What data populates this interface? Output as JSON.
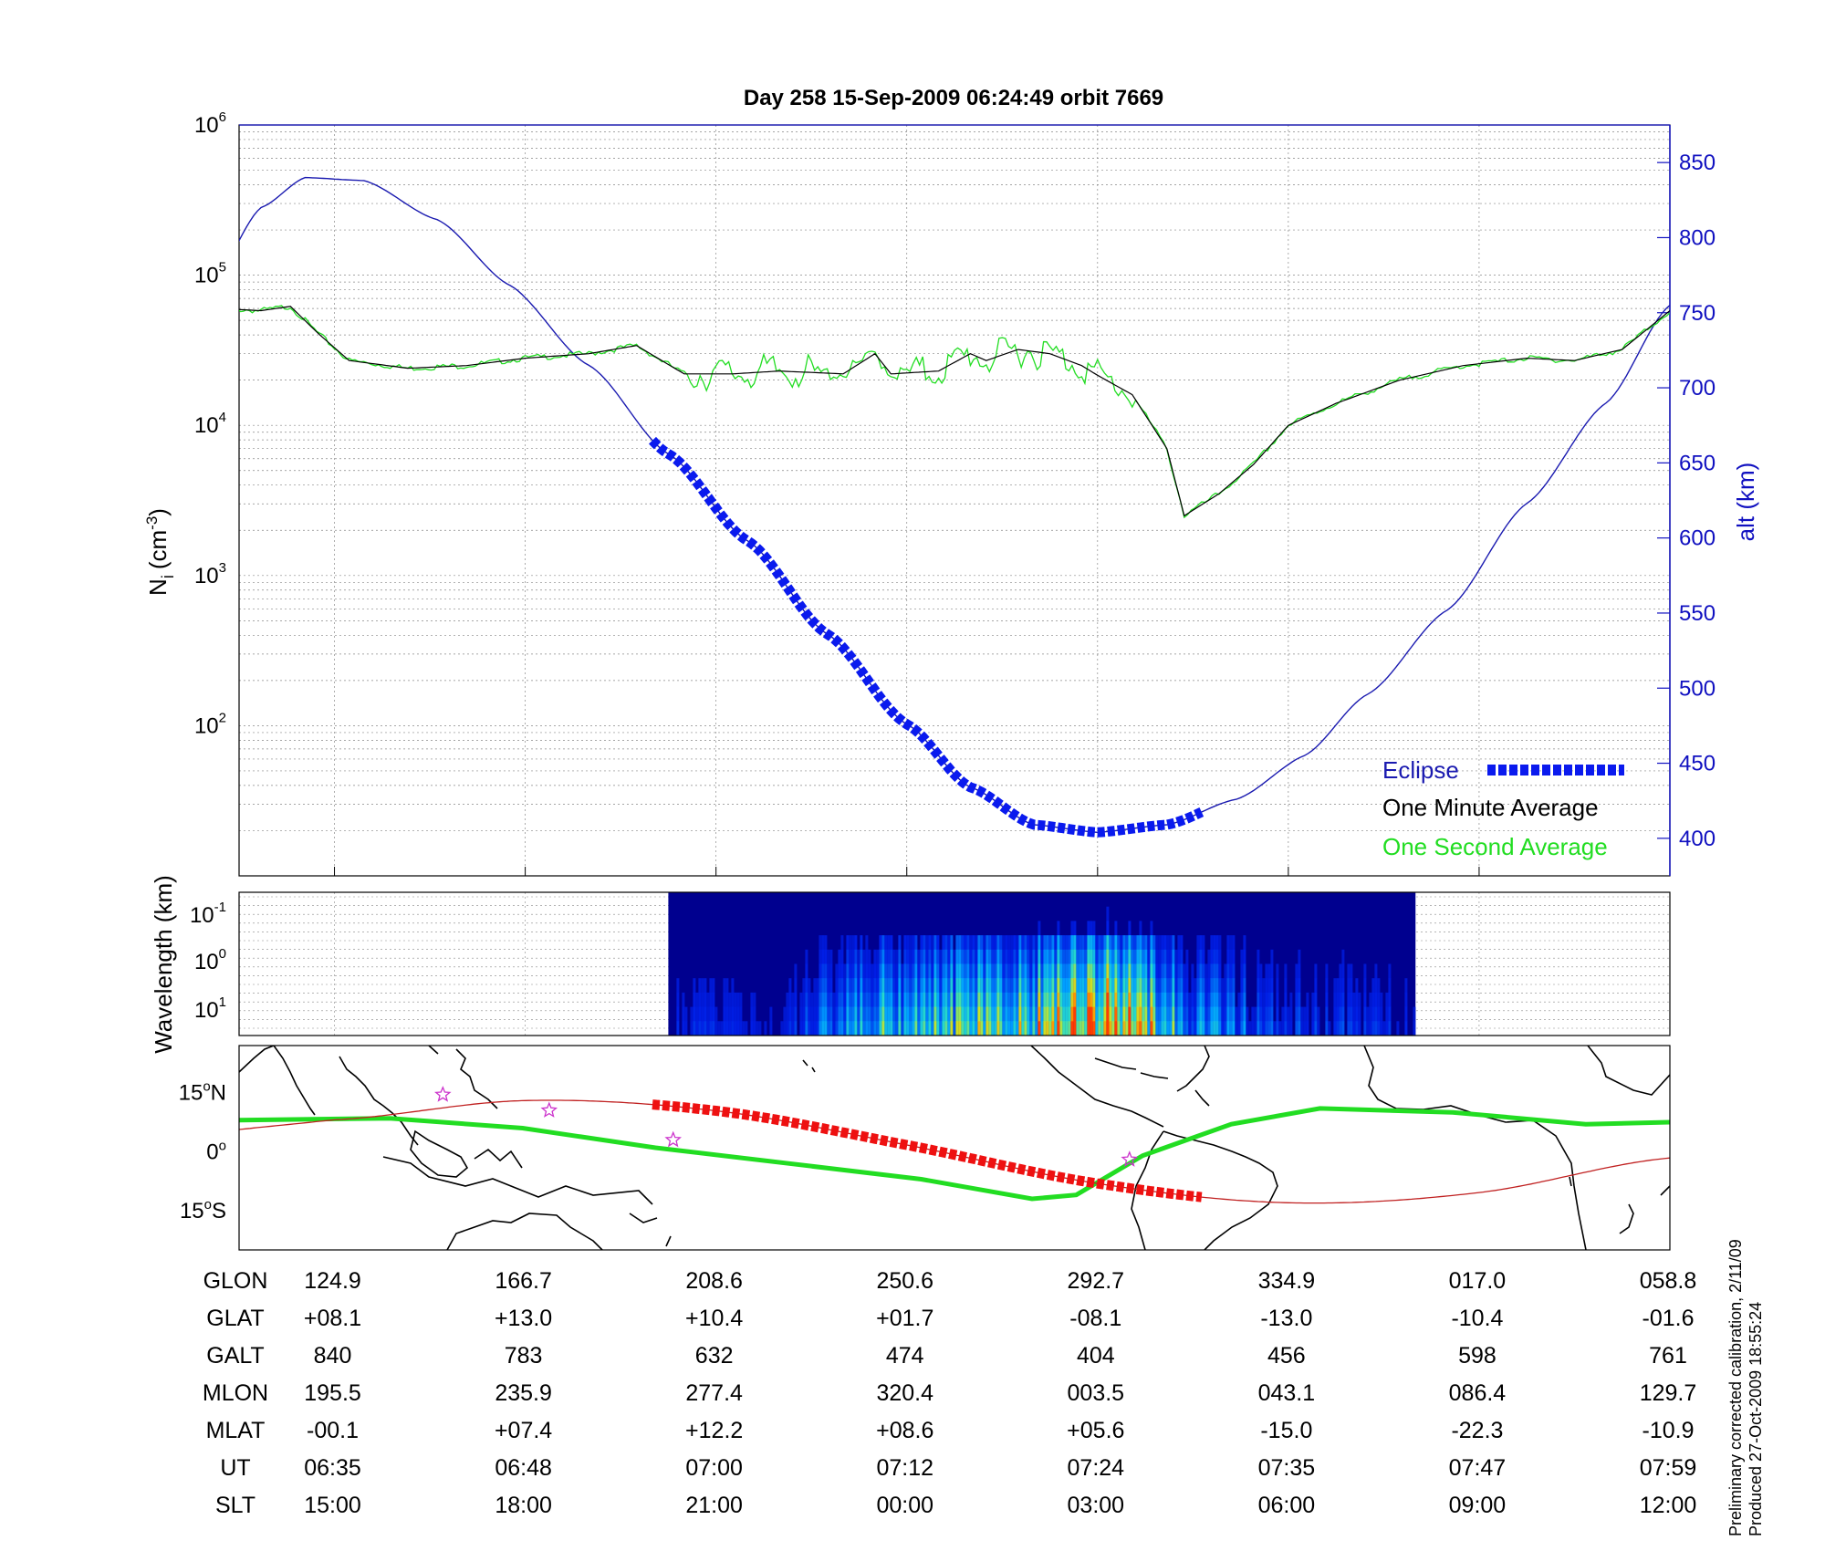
{
  "title": "Day 258  15-Sep-2009 06:24:49   orbit 7669",
  "colors": {
    "altitude": "#1a1ab0",
    "one_minute": "#000000",
    "one_second": "#22dd22",
    "eclipse": "#0a1aee",
    "ground_track": "#c02020",
    "eclipse_track": "#ee1111",
    "dip_equator": "#22dd22",
    "stars": "#cc33cc"
  },
  "chart_data": [
    {
      "type": "line",
      "panel": "density",
      "ylabel": "N",
      "ylabel_sub": "i",
      "ylabel_unit": "(cm",
      "ylabel_unit_sup": "-3",
      "ylabel_close": ")",
      "yscale": "log",
      "ylim": [
        10,
        1000000
      ],
      "yticks": [
        {
          "base": "10",
          "exp": "6"
        },
        {
          "base": "10",
          "exp": "5"
        },
        {
          "base": "10",
          "exp": "4"
        },
        {
          "base": "10",
          "exp": "3"
        },
        {
          "base": "10",
          "exp": "2"
        }
      ],
      "y2label": "alt (km)",
      "y2lim": [
        375,
        875
      ],
      "y2ticks": [
        "850",
        "800",
        "750",
        "700",
        "650",
        "600",
        "550",
        "500",
        "450",
        "400"
      ],
      "x_ut_range": [
        "06:27",
        "07:59"
      ],
      "legend": [
        "Eclipse",
        "One Minute Average",
        "One Second Average"
      ],
      "series": [
        {
          "name": "One Minute Average",
          "points": [
            [
              "06:27",
              60000
            ],
            [
              "06:30",
              58000
            ],
            [
              "06:32",
              62000
            ],
            [
              "06:34",
              40000
            ],
            [
              "06:36",
              27000
            ],
            [
              "06:40",
              24000
            ],
            [
              "06:44",
              25000
            ],
            [
              "06:48",
              28000
            ],
            [
              "06:52",
              30000
            ],
            [
              "06:55",
              34000
            ],
            [
              "06:58",
              22000
            ],
            [
              "07:01",
              22000
            ],
            [
              "07:04",
              23000
            ],
            [
              "07:08",
              22000
            ],
            [
              "07:10",
              30000
            ],
            [
              "07:11",
              22000
            ],
            [
              "07:14",
              23000
            ],
            [
              "07:16",
              30000
            ],
            [
              "07:17",
              27000
            ],
            [
              "07:19",
              32000
            ],
            [
              "07:21",
              30000
            ],
            [
              "07:23",
              25000
            ],
            [
              "07:26",
              16000
            ],
            [
              "07:28",
              7000
            ],
            [
              "07:29",
              2500
            ],
            [
              "07:31",
              3500
            ],
            [
              "07:33",
              5500
            ],
            [
              "07:35",
              10000
            ],
            [
              "07:38",
              14000
            ],
            [
              "07:42",
              20000
            ],
            [
              "07:46",
              25000
            ],
            [
              "07:50",
              28000
            ],
            [
              "07:53",
              27000
            ],
            [
              "07:56",
              32000
            ],
            [
              "07:59",
              58000
            ]
          ]
        },
        {
          "name": "altitude",
          "axis": "alt (km)",
          "points": [
            [
              "06:27",
              776
            ],
            [
              "06:30",
              820
            ],
            [
              "06:33",
              840
            ],
            [
              "06:37",
              838
            ],
            [
              "06:42",
              812
            ],
            [
              "06:47",
              768
            ],
            [
              "06:52",
              715
            ],
            [
              "06:57",
              656
            ],
            [
              "07:02",
              598
            ],
            [
              "07:07",
              536
            ],
            [
              "07:12",
              476
            ],
            [
              "07:16",
              434
            ],
            [
              "07:20",
              409
            ],
            [
              "07:24",
              404
            ],
            [
              "07:28",
              409
            ],
            [
              "07:32",
              426
            ],
            [
              "07:36",
              455
            ],
            [
              "07:40",
              496
            ],
            [
              "07:45",
              552
            ],
            [
              "07:50",
              623
            ],
            [
              "07:55",
              690
            ],
            [
              "07:59",
              755
            ]
          ]
        },
        {
          "name": "Eclipse",
          "axis": "alt (km)",
          "ut_range": [
            "06:56",
            "07:30"
          ]
        }
      ]
    },
    {
      "type": "heatmap",
      "panel": "spectrogram",
      "ylabel": "Wavelength (km)",
      "yscale": "log",
      "yticks": [
        {
          "base": "10",
          "exp": "-1"
        },
        {
          "base": "10",
          "exp": "0"
        },
        {
          "base": "10",
          "exp": "1"
        }
      ],
      "data_ut_range": [
        "06:57",
        "07:43"
      ],
      "intensity_profile": [
        [
          0,
          0.25
        ],
        [
          0.15,
          0.25
        ],
        [
          0.3,
          0.6
        ],
        [
          0.45,
          0.65
        ],
        [
          0.6,
          0.95
        ],
        [
          0.7,
          0.45
        ],
        [
          0.85,
          0.3
        ],
        [
          1,
          0.25
        ]
      ]
    },
    {
      "type": "line",
      "panel": "map",
      "ylabels": [
        {
          "deg": "15",
          "hemi": "N"
        },
        {
          "deg": "0",
          "hemi": ""
        },
        {
          "deg": "15",
          "hemi": "S"
        }
      ],
      "ylim": [
        -25,
        27
      ],
      "x_glon_range": [
        96,
        419
      ],
      "dip_equator": [
        [
          96,
          8
        ],
        [
          130,
          8.5
        ],
        [
          160,
          6
        ],
        [
          190,
          1
        ],
        [
          220,
          -3
        ],
        [
          250,
          -7
        ],
        [
          275,
          -12
        ],
        [
          285,
          -11
        ],
        [
          300,
          -1
        ],
        [
          320,
          7
        ],
        [
          340,
          11
        ],
        [
          370,
          10
        ],
        [
          400,
          7
        ],
        [
          419,
          7.5
        ]
      ],
      "ground_track_ut_range": [
        "06:27",
        "07:59"
      ],
      "eclipse_track_ut_range": [
        "06:56",
        "07:30"
      ],
      "stars": [
        [
          142,
          14.5
        ],
        [
          166,
          10.5
        ],
        [
          194,
          3
        ],
        [
          297,
          -2
        ]
      ]
    }
  ],
  "table": {
    "rows": [
      {
        "label": "GLON",
        "values": [
          "124.9",
          "166.7",
          "208.6",
          "250.6",
          "292.7",
          "334.9",
          "017.0",
          "058.8"
        ]
      },
      {
        "label": "GLAT",
        "values": [
          "+08.1",
          "+13.0",
          "+10.4",
          "+01.7",
          "-08.1",
          "-13.0",
          "-10.4",
          "-01.6"
        ]
      },
      {
        "label": "GALT",
        "values": [
          "840",
          "783",
          "632",
          "474",
          "404",
          "456",
          "598",
          "761"
        ]
      },
      {
        "label": "MLON",
        "values": [
          "195.5",
          "235.9",
          "277.4",
          "320.4",
          "003.5",
          "043.1",
          "086.4",
          "129.7"
        ]
      },
      {
        "label": "MLAT",
        "values": [
          "-00.1",
          "+07.4",
          "+12.2",
          "+08.6",
          "+05.6",
          "-15.0",
          "-22.3",
          "-10.9"
        ]
      },
      {
        "label": "UT",
        "values": [
          "06:35",
          "06:48",
          "07:00",
          "07:12",
          "07:24",
          "07:35",
          "07:47",
          "07:59"
        ]
      },
      {
        "label": "SLT",
        "values": [
          "15:00",
          "18:00",
          "21:00",
          "00:00",
          "03:00",
          "06:00",
          "09:00",
          "12:00"
        ]
      }
    ]
  },
  "footer": {
    "line1": "Preliminary corrected calibration, 2/11/09",
    "line2": "Produced 27-Oct-2009 18:55:24"
  }
}
